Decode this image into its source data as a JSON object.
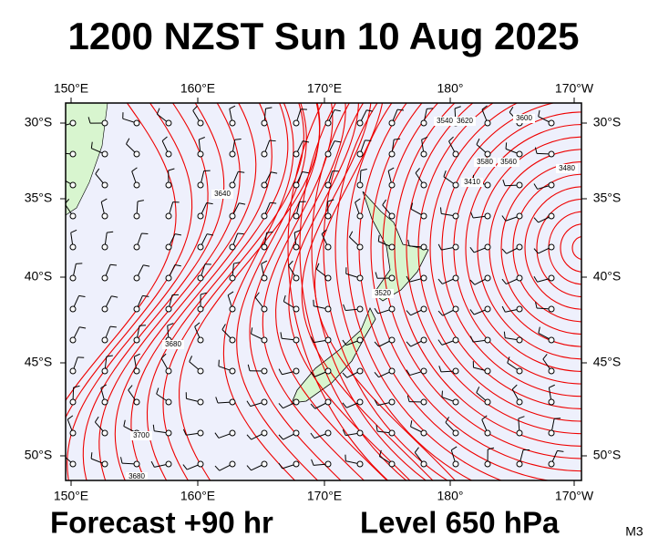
{
  "header": {
    "title": "1200 NZST Sun 10 Aug 2025"
  },
  "map": {
    "lon_labels": [
      "150°E",
      "160°E",
      "170°E",
      "180°",
      "170°W"
    ],
    "lat_labels": [
      "30°S",
      "35°S",
      "40°S",
      "45°S",
      "50°S"
    ],
    "contour_labels": [
      "3540",
      "3620",
      "3600",
      "3580",
      "3480",
      "3410",
      "3560",
      "3640",
      "3520",
      "3680",
      "3700",
      "3680"
    ]
  },
  "footer": {
    "forecast": "Forecast +90 hr",
    "level": "Level 650 hPa",
    "code": "M3"
  }
}
